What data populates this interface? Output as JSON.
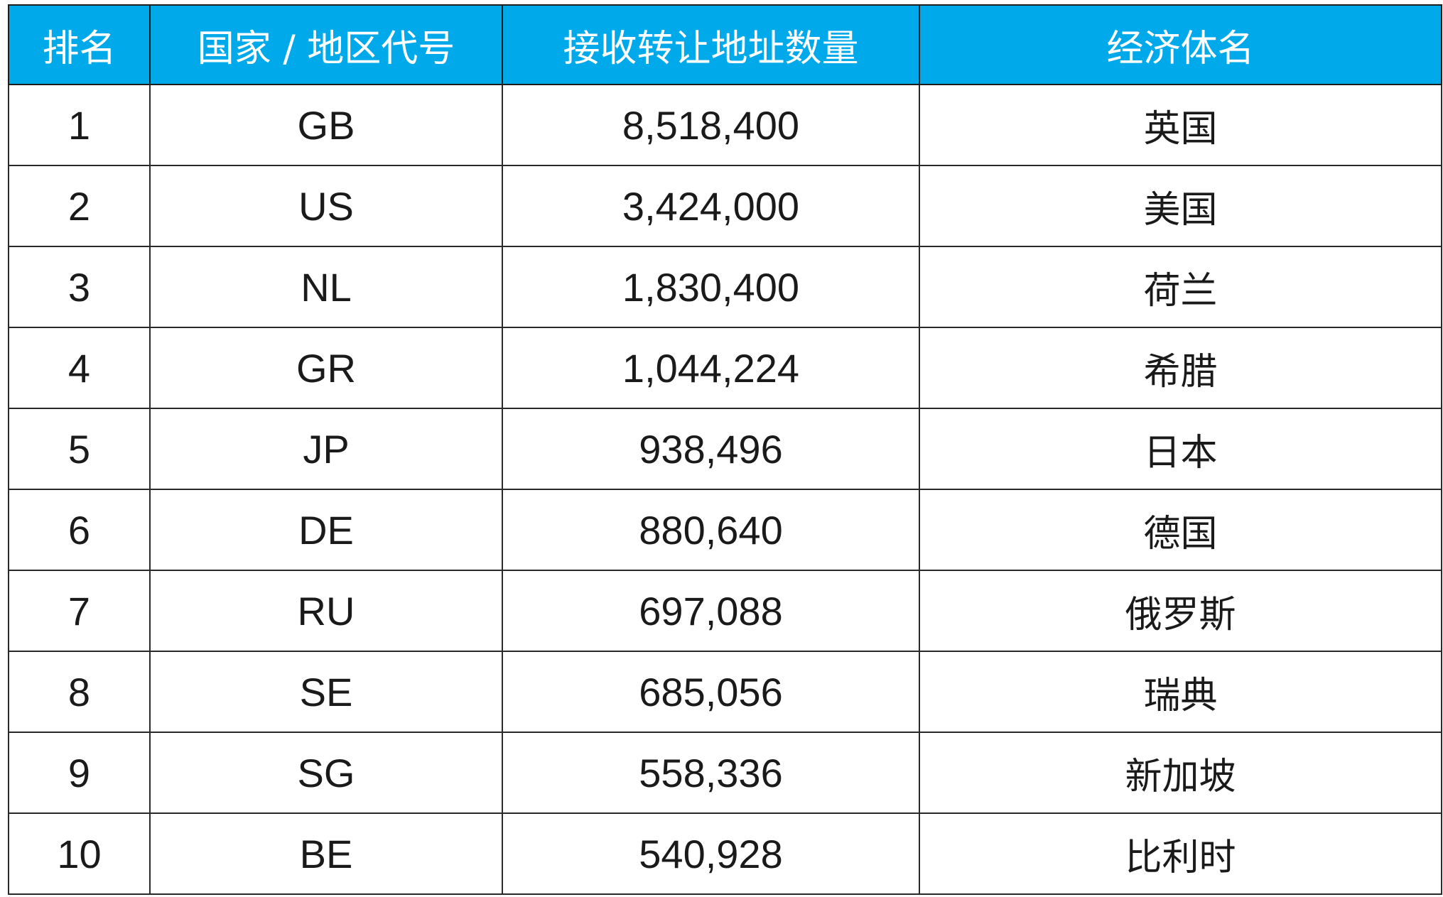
{
  "table": {
    "headers": {
      "rank": "排名",
      "code": "国家 / 地区代号",
      "count": "接收转让地址数量",
      "economy": "经济体名"
    },
    "rows": [
      {
        "rank": "1",
        "code": "GB",
        "count": "8,518,400",
        "economy": "英国"
      },
      {
        "rank": "2",
        "code": "US",
        "count": "3,424,000",
        "economy": "美国"
      },
      {
        "rank": "3",
        "code": "NL",
        "count": "1,830,400",
        "economy": "荷兰"
      },
      {
        "rank": "4",
        "code": "GR",
        "count": "1,044,224",
        "economy": "希腊"
      },
      {
        "rank": "5",
        "code": "JP",
        "count": "938,496",
        "economy": "日本"
      },
      {
        "rank": "6",
        "code": "DE",
        "count": "880,640",
        "economy": "德国"
      },
      {
        "rank": "7",
        "code": "RU",
        "count": "697,088",
        "economy": "俄罗斯"
      },
      {
        "rank": "8",
        "code": "SE",
        "count": "685,056",
        "economy": "瑞典"
      },
      {
        "rank": "9",
        "code": "SG",
        "count": "558,336",
        "economy": "新加坡"
      },
      {
        "rank": "10",
        "code": "BE",
        "count": "540,928",
        "economy": "比利时"
      }
    ]
  },
  "colors": {
    "header_background": "#00a9ea",
    "header_text": "#ffffff",
    "cell_text": "#1a1a1a",
    "border": "#2a2a2a"
  }
}
